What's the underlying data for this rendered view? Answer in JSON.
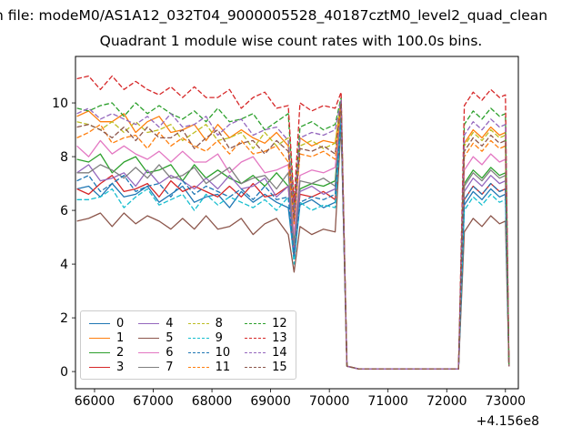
{
  "figure": {
    "suptitle": "n file: modeM0/AS1A12_032T04_9000005528_40187cztM0_level2_quad_clean",
    "title": "Quadrant 1 module wise count rates with 100.0s bins.",
    "background": "#ffffff"
  },
  "chart_data": {
    "type": "line",
    "title": "Quadrant 1 module wise count rates with 100.0s bins.",
    "xlabel": "",
    "ylabel": "",
    "x_offset_label": "+4.156e8",
    "xlim": [
      65675,
      73220
    ],
    "ylim": [
      -0.64,
      11.73
    ],
    "xticks": [
      66000,
      67000,
      68000,
      69000,
      70000,
      71000,
      72000,
      73000
    ],
    "yticks": [
      0,
      2,
      4,
      6,
      8,
      10
    ],
    "grid": false,
    "legend": {
      "loc": "lower left",
      "ncol": 4
    },
    "x": [
      65700,
      65900,
      66100,
      66300,
      66500,
      66700,
      66900,
      67100,
      67300,
      67500,
      67700,
      67900,
      68100,
      68300,
      68500,
      68700,
      68900,
      69100,
      69300,
      69400,
      69500,
      69700,
      69900,
      70100,
      70200,
      70300,
      70500,
      71000,
      71500,
      72000,
      72200,
      72300,
      72450,
      72600,
      72750,
      72900,
      73000,
      73060
    ],
    "series": [
      {
        "name": "0",
        "color": "#1f77b4",
        "dash": false,
        "values": [
          6.8,
          6.9,
          6.5,
          7.0,
          6.5,
          6.6,
          6.9,
          6.3,
          6.6,
          6.9,
          6.3,
          6.5,
          6.6,
          6.1,
          6.7,
          6.3,
          6.6,
          6.3,
          6.1,
          4.2,
          6.2,
          6.4,
          6.1,
          6.3,
          9.4,
          0.2,
          0.1,
          0.1,
          0.1,
          0.1,
          0.1,
          6.2,
          6.7,
          6.4,
          6.8,
          6.5,
          6.6,
          0.2
        ]
      },
      {
        "name": "1",
        "color": "#ff7f0e",
        "dash": false,
        "values": [
          9.5,
          9.7,
          9.3,
          9.3,
          9.6,
          8.9,
          9.3,
          9.5,
          8.9,
          9.0,
          9.2,
          8.6,
          9.2,
          8.7,
          9.0,
          8.7,
          8.5,
          8.9,
          8.4,
          5.8,
          8.7,
          8.4,
          8.6,
          8.5,
          10.1,
          0.2,
          0.1,
          0.1,
          0.1,
          0.1,
          0.1,
          8.5,
          9.0,
          8.7,
          9.1,
          8.8,
          8.9,
          0.2
        ]
      },
      {
        "name": "2",
        "color": "#2ca02c",
        "dash": false,
        "values": [
          7.9,
          7.8,
          8.1,
          7.4,
          7.8,
          8.0,
          7.4,
          7.5,
          7.7,
          7.1,
          7.7,
          7.2,
          7.5,
          7.2,
          7.0,
          7.3,
          6.9,
          7.4,
          6.9,
          4.8,
          6.8,
          7.0,
          6.9,
          7.1,
          9.7,
          0.2,
          0.1,
          0.1,
          0.1,
          0.1,
          0.1,
          7.0,
          7.5,
          7.2,
          7.6,
          7.3,
          7.4,
          0.2
        ]
      },
      {
        "name": "3",
        "color": "#d62728",
        "dash": false,
        "values": [
          6.8,
          6.6,
          7.0,
          7.3,
          6.7,
          6.8,
          7.0,
          6.5,
          7.1,
          6.7,
          6.9,
          6.7,
          6.5,
          6.9,
          6.5,
          7.0,
          6.5,
          6.6,
          6.9,
          4.3,
          6.6,
          6.5,
          6.7,
          6.4,
          9.5,
          0.2,
          0.1,
          0.1,
          0.1,
          0.1,
          0.1,
          6.4,
          6.9,
          6.6,
          7.0,
          6.7,
          6.8,
          0.2
        ]
      },
      {
        "name": "4",
        "color": "#9467bd",
        "dash": false,
        "values": [
          7.4,
          7.7,
          7.1,
          7.2,
          7.4,
          6.9,
          7.5,
          7.0,
          7.3,
          7.1,
          6.8,
          7.2,
          6.8,
          7.3,
          6.8,
          6.9,
          7.2,
          6.5,
          6.9,
          4.5,
          6.7,
          6.9,
          6.6,
          6.8,
          9.6,
          0.2,
          0.1,
          0.1,
          0.1,
          0.1,
          0.1,
          6.7,
          7.2,
          6.9,
          7.3,
          7.0,
          7.1,
          0.2
        ]
      },
      {
        "name": "5",
        "color": "#8c564b",
        "dash": false,
        "values": [
          5.6,
          5.7,
          5.9,
          5.4,
          5.9,
          5.5,
          5.8,
          5.6,
          5.3,
          5.7,
          5.3,
          5.8,
          5.3,
          5.4,
          5.7,
          5.1,
          5.5,
          5.7,
          5.1,
          3.7,
          5.4,
          5.1,
          5.3,
          5.2,
          9.2,
          0.2,
          0.1,
          0.1,
          0.1,
          0.1,
          0.1,
          5.2,
          5.7,
          5.4,
          5.8,
          5.5,
          5.6,
          0.2
        ]
      },
      {
        "name": "6",
        "color": "#e377c2",
        "dash": false,
        "values": [
          8.4,
          8.0,
          8.6,
          8.1,
          8.4,
          8.1,
          7.9,
          8.2,
          7.8,
          8.2,
          7.8,
          7.8,
          8.1,
          7.4,
          7.8,
          8.0,
          7.4,
          7.5,
          7.7,
          5.1,
          7.3,
          7.5,
          7.4,
          7.6,
          9.8,
          0.2,
          0.1,
          0.1,
          0.1,
          0.1,
          0.1,
          7.5,
          8.0,
          7.7,
          8.1,
          7.8,
          7.9,
          0.2
        ]
      },
      {
        "name": "7",
        "color": "#7f7f7f",
        "dash": false,
        "values": [
          7.4,
          7.4,
          7.7,
          7.5,
          7.2,
          7.6,
          7.2,
          7.7,
          7.2,
          7.3,
          7.6,
          7.0,
          7.3,
          7.6,
          7.0,
          7.2,
          7.3,
          6.8,
          7.4,
          4.7,
          7.1,
          7.0,
          7.2,
          6.9,
          9.6,
          0.2,
          0.1,
          0.1,
          0.1,
          0.1,
          0.1,
          6.9,
          7.4,
          7.1,
          7.5,
          7.2,
          7.3,
          0.2
        ]
      },
      {
        "name": "8",
        "color": "#bcbd22",
        "dash": true,
        "values": [
          9.3,
          9.2,
          9.0,
          9.3,
          8.9,
          9.3,
          8.9,
          9.0,
          9.2,
          8.6,
          8.9,
          9.2,
          8.6,
          8.7,
          8.9,
          8.3,
          8.9,
          8.4,
          8.7,
          5.7,
          8.4,
          8.6,
          8.3,
          8.5,
          10.0,
          0.2,
          0.1,
          0.1,
          0.1,
          0.1,
          0.1,
          8.4,
          8.9,
          8.6,
          9.0,
          8.7,
          8.8,
          0.2
        ]
      },
      {
        "name": "9",
        "color": "#17becf",
        "dash": true,
        "values": [
          6.4,
          6.4,
          6.5,
          6.8,
          6.1,
          6.5,
          6.8,
          6.2,
          6.4,
          6.6,
          6.0,
          6.6,
          6.2,
          6.5,
          6.3,
          6.1,
          6.4,
          6.0,
          6.5,
          4.0,
          6.3,
          6.0,
          6.2,
          6.1,
          9.4,
          0.2,
          0.1,
          0.1,
          0.1,
          0.1,
          0.1,
          6.0,
          6.5,
          6.2,
          6.6,
          6.3,
          6.4,
          0.2
        ]
      },
      {
        "name": "10",
        "color": "#1f77b4",
        "dash": true,
        "values": [
          7.1,
          7.3,
          6.7,
          7.0,
          7.3,
          6.7,
          6.9,
          7.0,
          6.5,
          7.1,
          6.6,
          6.9,
          6.7,
          6.5,
          6.8,
          6.4,
          6.9,
          6.4,
          6.5,
          4.3,
          6.3,
          6.5,
          6.4,
          6.6,
          9.5,
          0.2,
          0.1,
          0.1,
          0.1,
          0.1,
          0.1,
          6.4,
          6.9,
          6.6,
          7.0,
          6.7,
          6.8,
          0.2
        ]
      },
      {
        "name": "11",
        "color": "#ff7f0e",
        "dash": true,
        "values": [
          8.7,
          8.9,
          9.2,
          8.5,
          8.7,
          8.8,
          8.3,
          8.9,
          8.4,
          8.7,
          8.4,
          8.2,
          8.6,
          8.1,
          8.6,
          8.1,
          8.2,
          8.4,
          7.8,
          5.5,
          8.1,
          8.0,
          8.2,
          7.9,
          9.9,
          0.2,
          0.1,
          0.1,
          0.1,
          0.1,
          0.1,
          8.0,
          8.5,
          8.2,
          8.6,
          8.3,
          8.4,
          0.2
        ]
      },
      {
        "name": "12",
        "color": "#2ca02c",
        "dash": true,
        "values": [
          9.8,
          9.7,
          9.9,
          10.0,
          9.5,
          10.0,
          9.6,
          9.9,
          9.6,
          9.4,
          9.7,
          9.3,
          9.8,
          9.3,
          9.4,
          9.6,
          9.0,
          9.3,
          9.6,
          6.1,
          9.1,
          9.3,
          9.0,
          9.2,
          10.2,
          0.2,
          0.1,
          0.1,
          0.1,
          0.1,
          0.1,
          9.2,
          9.7,
          9.4,
          9.8,
          9.5,
          9.6,
          0.2
        ]
      },
      {
        "name": "13",
        "color": "#d62728",
        "dash": true,
        "values": [
          10.9,
          11.0,
          10.5,
          11.0,
          10.5,
          10.8,
          10.5,
          10.3,
          10.6,
          10.2,
          10.6,
          10.2,
          10.2,
          10.5,
          9.8,
          10.2,
          10.4,
          9.8,
          9.9,
          6.3,
          10.0,
          9.7,
          9.9,
          9.8,
          10.4,
          0.2,
          0.1,
          0.1,
          0.1,
          0.1,
          0.1,
          9.9,
          10.4,
          10.1,
          10.5,
          10.2,
          10.3,
          0.2
        ]
      },
      {
        "name": "14",
        "color": "#9467bd",
        "dash": true,
        "values": [
          9.6,
          9.8,
          9.4,
          9.6,
          9.4,
          9.2,
          9.5,
          9.1,
          9.6,
          9.1,
          9.2,
          9.5,
          8.8,
          9.2,
          9.4,
          8.8,
          9.0,
          9.1,
          8.6,
          5.9,
          8.7,
          8.9,
          8.8,
          9.0,
          10.1,
          0.2,
          0.1,
          0.1,
          0.1,
          0.1,
          0.1,
          8.8,
          9.3,
          9.0,
          9.4,
          9.1,
          9.2,
          0.2
        ]
      },
      {
        "name": "15",
        "color": "#8c564b",
        "dash": true,
        "values": [
          9.1,
          9.2,
          9.0,
          8.7,
          9.1,
          8.6,
          9.1,
          8.7,
          8.7,
          9.0,
          8.3,
          8.7,
          9.0,
          8.3,
          8.5,
          8.6,
          8.1,
          8.6,
          8.2,
          5.6,
          8.3,
          8.2,
          8.4,
          8.1,
          10.0,
          0.2,
          0.1,
          0.1,
          0.1,
          0.1,
          0.1,
          8.2,
          8.7,
          8.4,
          8.8,
          8.5,
          8.6,
          0.2
        ]
      }
    ]
  }
}
